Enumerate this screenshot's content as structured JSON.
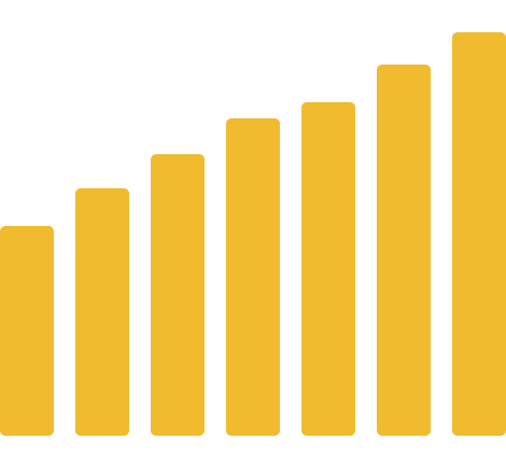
{
  "chart_data": {
    "type": "bar",
    "values": [
      234,
      276,
      314,
      354,
      372,
      414,
      450
    ],
    "color": "#f0bb2e",
    "ylim": [
      0,
      486
    ]
  }
}
